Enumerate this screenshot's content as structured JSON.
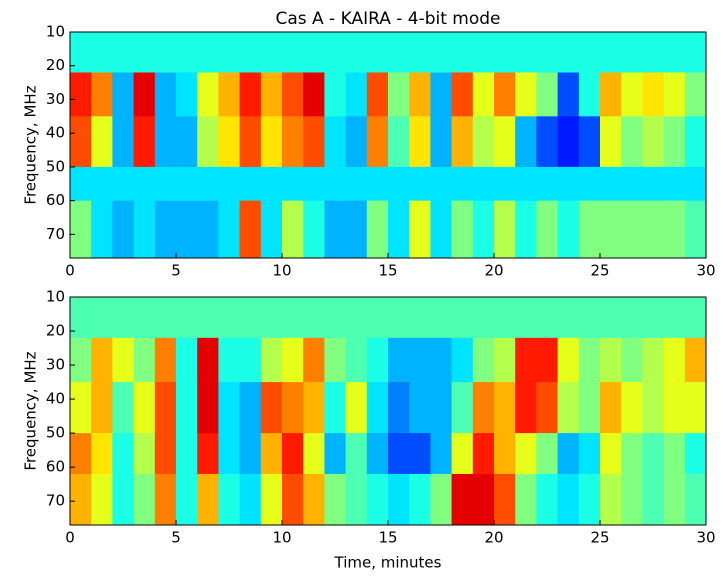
{
  "chart_data": [
    {
      "type": "heatmap",
      "title": "Cas A - KAIRA - 4-bit mode",
      "ylabel": "Frequency, MHz",
      "colormap": "jet",
      "zlim": [
        0,
        1
      ],
      "x_bins": [
        0,
        1,
        2,
        3,
        4,
        5,
        6,
        7,
        8,
        9,
        10,
        11,
        12,
        13,
        14,
        15,
        16,
        17,
        18,
        19,
        20,
        21,
        22,
        23,
        24,
        25,
        26,
        27,
        28,
        29,
        30
      ],
      "y_bins": [
        10,
        22,
        35,
        50,
        60,
        77
      ],
      "values": [
        [
          0.4,
          0.4,
          0.4,
          0.4,
          0.4,
          0.4,
          0.4,
          0.4,
          0.4,
          0.4,
          0.4,
          0.4,
          0.4,
          0.4,
          0.4,
          0.4,
          0.4,
          0.4,
          0.4,
          0.4,
          0.4,
          0.4,
          0.4,
          0.4,
          0.4,
          0.4,
          0.4,
          0.4,
          0.4,
          0.4
        ],
        [
          0.85,
          0.75,
          0.3,
          0.9,
          0.3,
          0.35,
          0.6,
          0.7,
          0.85,
          0.7,
          0.8,
          0.9,
          0.4,
          0.35,
          0.8,
          0.5,
          0.7,
          0.3,
          0.8,
          0.6,
          0.75,
          0.6,
          0.5,
          0.2,
          0.4,
          0.7,
          0.6,
          0.65,
          0.6,
          0.5
        ],
        [
          0.8,
          0.6,
          0.3,
          0.85,
          0.3,
          0.3,
          0.55,
          0.65,
          0.8,
          0.65,
          0.75,
          0.8,
          0.35,
          0.3,
          0.75,
          0.45,
          0.65,
          0.3,
          0.7,
          0.55,
          0.6,
          0.3,
          0.2,
          0.15,
          0.2,
          0.6,
          0.5,
          0.55,
          0.5,
          0.4
        ],
        [
          0.35,
          0.35,
          0.35,
          0.35,
          0.35,
          0.35,
          0.35,
          0.35,
          0.35,
          0.35,
          0.35,
          0.35,
          0.35,
          0.35,
          0.35,
          0.35,
          0.35,
          0.35,
          0.35,
          0.35,
          0.35,
          0.35,
          0.35,
          0.35,
          0.35,
          0.35,
          0.35,
          0.35,
          0.35,
          0.35
        ],
        [
          0.5,
          0.35,
          0.3,
          0.35,
          0.3,
          0.3,
          0.3,
          0.35,
          0.8,
          0.35,
          0.55,
          0.4,
          0.3,
          0.3,
          0.5,
          0.35,
          0.6,
          0.35,
          0.5,
          0.4,
          0.55,
          0.4,
          0.5,
          0.4,
          0.5,
          0.5,
          0.5,
          0.5,
          0.5,
          0.45
        ]
      ],
      "xlim": [
        0,
        30
      ],
      "ylim": [
        77,
        10
      ],
      "xticks": [
        0,
        5,
        10,
        15,
        20,
        25,
        30
      ],
      "yticks": [
        10,
        20,
        30,
        40,
        50,
        60,
        70
      ]
    },
    {
      "type": "heatmap",
      "ylabel": "Frequency, MHz",
      "xlabel": "Time, minutes",
      "colormap": "jet",
      "zlim": [
        0,
        1
      ],
      "x_bins": [
        0,
        1,
        2,
        3,
        4,
        5,
        6,
        7,
        8,
        9,
        10,
        11,
        12,
        13,
        14,
        15,
        16,
        17,
        18,
        19,
        20,
        21,
        22,
        23,
        24,
        25,
        26,
        27,
        28,
        29,
        30
      ],
      "y_bins": [
        10,
        22,
        35,
        50,
        62,
        77
      ],
      "values": [
        [
          0.45,
          0.45,
          0.45,
          0.45,
          0.45,
          0.45,
          0.45,
          0.45,
          0.45,
          0.45,
          0.45,
          0.45,
          0.45,
          0.45,
          0.45,
          0.45,
          0.45,
          0.45,
          0.45,
          0.45,
          0.45,
          0.45,
          0.45,
          0.45,
          0.45,
          0.45,
          0.45,
          0.45,
          0.45,
          0.45
        ],
        [
          0.5,
          0.7,
          0.6,
          0.5,
          0.75,
          0.4,
          0.9,
          0.4,
          0.4,
          0.55,
          0.6,
          0.75,
          0.5,
          0.45,
          0.4,
          0.3,
          0.3,
          0.3,
          0.35,
          0.5,
          0.55,
          0.85,
          0.85,
          0.6,
          0.5,
          0.55,
          0.5,
          0.55,
          0.6,
          0.7
        ],
        [
          0.6,
          0.7,
          0.45,
          0.6,
          0.8,
          0.4,
          0.9,
          0.35,
          0.3,
          0.8,
          0.75,
          0.7,
          0.4,
          0.6,
          0.35,
          0.25,
          0.3,
          0.3,
          0.45,
          0.75,
          0.7,
          0.85,
          0.8,
          0.55,
          0.5,
          0.7,
          0.6,
          0.55,
          0.6,
          0.6
        ],
        [
          0.75,
          0.65,
          0.4,
          0.55,
          0.8,
          0.4,
          0.85,
          0.35,
          0.3,
          0.7,
          0.85,
          0.6,
          0.3,
          0.45,
          0.3,
          0.2,
          0.2,
          0.3,
          0.6,
          0.85,
          0.7,
          0.6,
          0.5,
          0.3,
          0.35,
          0.6,
          0.5,
          0.45,
          0.5,
          0.4
        ],
        [
          0.7,
          0.6,
          0.4,
          0.5,
          0.75,
          0.4,
          0.7,
          0.4,
          0.35,
          0.6,
          0.8,
          0.7,
          0.5,
          0.45,
          0.4,
          0.35,
          0.4,
          0.5,
          0.9,
          0.9,
          0.8,
          0.5,
          0.4,
          0.35,
          0.4,
          0.55,
          0.5,
          0.45,
          0.5,
          0.45
        ]
      ],
      "xlim": [
        0,
        30
      ],
      "ylim": [
        77,
        10
      ],
      "xticks": [
        0,
        5,
        10,
        15,
        20,
        25,
        30
      ],
      "yticks": [
        10,
        20,
        30,
        40,
        50,
        60,
        70
      ]
    }
  ]
}
